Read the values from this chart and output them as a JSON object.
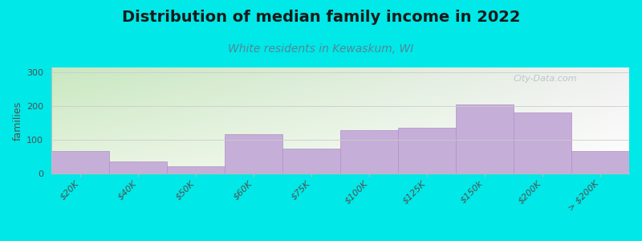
{
  "title": "Distribution of median family income in 2022",
  "subtitle": "White residents in Kewaskum, WI",
  "ylabel": "families",
  "categories": [
    "$20K",
    "$40K",
    "$50K",
    "$60K",
    "$75K",
    "$100K",
    "$125K",
    "$150k",
    "$200K",
    "> $200K"
  ],
  "values": [
    68,
    35,
    22,
    118,
    75,
    130,
    135,
    205,
    182,
    68
  ],
  "bar_color": "#c5aed8",
  "bar_edge_color": "#b090c8",
  "bg_color": "#00e8e8",
  "plot_bg_top_left": "#c8e8c0",
  "plot_bg_top_right": "#f0f0f0",
  "plot_bg_bottom_left": "#e8f4e0",
  "plot_bg_bottom_right": "#ffffff",
  "title_fontsize": 14,
  "subtitle_fontsize": 10,
  "subtitle_color": "#508898",
  "ylabel_fontsize": 9,
  "yticks": [
    0,
    100,
    200,
    300
  ],
  "ylim": [
    0,
    315
  ],
  "watermark": "City-Data.com"
}
